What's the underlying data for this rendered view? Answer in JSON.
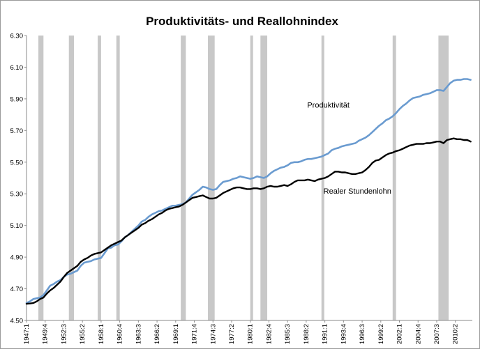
{
  "chart_data": {
    "type": "line",
    "title": "Produktivitäts- und Reallohnindex",
    "xlabel": "",
    "ylabel": "",
    "ylim": [
      4.5,
      6.3
    ],
    "yticks": [
      "6.30",
      "6.10",
      "5.90",
      "5.70",
      "5.50",
      "5.30",
      "5.10",
      "4.90",
      "4.70",
      "4.50"
    ],
    "xlim": [
      1947.0,
      2012.75
    ],
    "xticks": [
      {
        "label": "1947:1",
        "x": 1947.0
      },
      {
        "label": "1949:4",
        "x": 1949.75
      },
      {
        "label": "1952:3",
        "x": 1952.5
      },
      {
        "label": "1955:2",
        "x": 1955.25
      },
      {
        "label": "1958:1",
        "x": 1958.0
      },
      {
        "label": "1960:4",
        "x": 1960.75
      },
      {
        "label": "1963:3",
        "x": 1963.5
      },
      {
        "label": "1966:2",
        "x": 1966.25
      },
      {
        "label": "1969:1",
        "x": 1969.0
      },
      {
        "label": "1971:4",
        "x": 1971.75
      },
      {
        "label": "1974:3",
        "x": 1974.5
      },
      {
        "label": "1977:2",
        "x": 1977.25
      },
      {
        "label": "1980:1",
        "x": 1980.0
      },
      {
        "label": "1982:4",
        "x": 1982.75
      },
      {
        "label": "1985:3",
        "x": 1985.5
      },
      {
        "label": "1988:2",
        "x": 1988.25
      },
      {
        "label": "1991:1",
        "x": 1991.0
      },
      {
        "label": "1993:4",
        "x": 1993.75
      },
      {
        "label": "1996:3",
        "x": 1996.5
      },
      {
        "label": "1999:2",
        "x": 1999.25
      },
      {
        "label": "2002:1",
        "x": 2002.0
      },
      {
        "label": "2004:4",
        "x": 2004.75
      },
      {
        "label": "2007:3",
        "x": 2007.5
      },
      {
        "label": "2010:2",
        "x": 2010.25
      }
    ],
    "recessions": [
      [
        1948.75,
        1949.5
      ],
      [
        1953.25,
        1954.0
      ],
      [
        1957.5,
        1958.0
      ],
      [
        1960.25,
        1960.75
      ],
      [
        1969.75,
        1970.5
      ],
      [
        1973.75,
        1974.75
      ],
      [
        1980.0,
        1980.25
      ],
      [
        1981.5,
        1982.5
      ],
      [
        1990.5,
        1990.9
      ],
      [
        2001.0,
        2001.5
      ],
      [
        2007.75,
        2009.25
      ]
    ],
    "grid": false,
    "legend": "none",
    "series": [
      {
        "name": "Produktivität",
        "color": "#6a9bd0",
        "label_at": [
          1988.4,
          5.845
        ],
        "points": [
          [
            1947.0,
            4.61
          ],
          [
            1947.5,
            4.62
          ],
          [
            1948.0,
            4.635
          ],
          [
            1948.5,
            4.64
          ],
          [
            1949.0,
            4.645
          ],
          [
            1949.5,
            4.66
          ],
          [
            1950.0,
            4.69
          ],
          [
            1950.5,
            4.72
          ],
          [
            1951.0,
            4.73
          ],
          [
            1951.5,
            4.745
          ],
          [
            1952.0,
            4.755
          ],
          [
            1952.5,
            4.775
          ],
          [
            1953.0,
            4.79
          ],
          [
            1953.5,
            4.795
          ],
          [
            1954.0,
            4.805
          ],
          [
            1954.5,
            4.815
          ],
          [
            1955.0,
            4.845
          ],
          [
            1955.5,
            4.865
          ],
          [
            1956.0,
            4.87
          ],
          [
            1956.5,
            4.875
          ],
          [
            1957.0,
            4.885
          ],
          [
            1957.5,
            4.89
          ],
          [
            1958.0,
            4.895
          ],
          [
            1958.5,
            4.925
          ],
          [
            1959.0,
            4.955
          ],
          [
            1959.5,
            4.96
          ],
          [
            1960.0,
            4.975
          ],
          [
            1960.5,
            4.98
          ],
          [
            1961.0,
            5.0
          ],
          [
            1961.5,
            5.025
          ],
          [
            1962.0,
            5.04
          ],
          [
            1962.5,
            5.06
          ],
          [
            1963.0,
            5.08
          ],
          [
            1963.5,
            5.1
          ],
          [
            1964.0,
            5.125
          ],
          [
            1964.5,
            5.135
          ],
          [
            1965.0,
            5.155
          ],
          [
            1965.5,
            5.17
          ],
          [
            1966.0,
            5.18
          ],
          [
            1966.5,
            5.19
          ],
          [
            1967.0,
            5.195
          ],
          [
            1967.5,
            5.205
          ],
          [
            1968.0,
            5.215
          ],
          [
            1968.5,
            5.225
          ],
          [
            1969.0,
            5.225
          ],
          [
            1969.5,
            5.23
          ],
          [
            1970.0,
            5.235
          ],
          [
            1970.5,
            5.245
          ],
          [
            1971.0,
            5.27
          ],
          [
            1971.5,
            5.295
          ],
          [
            1972.0,
            5.31
          ],
          [
            1972.5,
            5.325
          ],
          [
            1973.0,
            5.345
          ],
          [
            1973.5,
            5.34
          ],
          [
            1974.0,
            5.33
          ],
          [
            1974.5,
            5.325
          ],
          [
            1975.0,
            5.33
          ],
          [
            1975.5,
            5.355
          ],
          [
            1976.0,
            5.375
          ],
          [
            1976.5,
            5.38
          ],
          [
            1977.0,
            5.385
          ],
          [
            1977.5,
            5.395
          ],
          [
            1978.0,
            5.4
          ],
          [
            1978.5,
            5.41
          ],
          [
            1979.0,
            5.405
          ],
          [
            1979.5,
            5.4
          ],
          [
            1980.0,
            5.395
          ],
          [
            1980.5,
            5.4
          ],
          [
            1981.0,
            5.41
          ],
          [
            1981.5,
            5.405
          ],
          [
            1982.0,
            5.4
          ],
          [
            1982.5,
            5.41
          ],
          [
            1983.0,
            5.43
          ],
          [
            1983.5,
            5.445
          ],
          [
            1984.0,
            5.455
          ],
          [
            1984.5,
            5.465
          ],
          [
            1985.0,
            5.47
          ],
          [
            1985.5,
            5.48
          ],
          [
            1986.0,
            5.495
          ],
          [
            1986.5,
            5.5
          ],
          [
            1987.0,
            5.5
          ],
          [
            1987.5,
            5.505
          ],
          [
            1988.0,
            5.515
          ],
          [
            1988.5,
            5.52
          ],
          [
            1989.0,
            5.52
          ],
          [
            1989.5,
            5.525
          ],
          [
            1990.0,
            5.53
          ],
          [
            1990.5,
            5.535
          ],
          [
            1991.0,
            5.545
          ],
          [
            1991.5,
            5.555
          ],
          [
            1992.0,
            5.575
          ],
          [
            1992.5,
            5.585
          ],
          [
            1993.0,
            5.59
          ],
          [
            1993.5,
            5.6
          ],
          [
            1994.0,
            5.605
          ],
          [
            1994.5,
            5.61
          ],
          [
            1995.0,
            5.615
          ],
          [
            1995.5,
            5.62
          ],
          [
            1996.0,
            5.635
          ],
          [
            1996.5,
            5.645
          ],
          [
            1997.0,
            5.655
          ],
          [
            1997.5,
            5.67
          ],
          [
            1998.0,
            5.69
          ],
          [
            1998.5,
            5.71
          ],
          [
            1999.0,
            5.73
          ],
          [
            1999.5,
            5.745
          ],
          [
            2000.0,
            5.765
          ],
          [
            2000.5,
            5.775
          ],
          [
            2001.0,
            5.79
          ],
          [
            2001.5,
            5.81
          ],
          [
            2002.0,
            5.835
          ],
          [
            2002.5,
            5.855
          ],
          [
            2003.0,
            5.87
          ],
          [
            2003.5,
            5.89
          ],
          [
            2004.0,
            5.905
          ],
          [
            2004.5,
            5.91
          ],
          [
            2005.0,
            5.915
          ],
          [
            2005.5,
            5.925
          ],
          [
            2006.0,
            5.93
          ],
          [
            2006.5,
            5.935
          ],
          [
            2007.0,
            5.945
          ],
          [
            2007.5,
            5.955
          ],
          [
            2008.0,
            5.955
          ],
          [
            2008.5,
            5.95
          ],
          [
            2009.0,
            5.975
          ],
          [
            2009.5,
            6.0
          ],
          [
            2010.0,
            6.015
          ],
          [
            2010.5,
            6.02
          ],
          [
            2011.0,
            6.02
          ],
          [
            2011.5,
            6.025
          ],
          [
            2012.0,
            6.025
          ],
          [
            2012.5,
            6.02
          ]
        ]
      },
      {
        "name": "Realer Stundenlohn",
        "color": "#000000",
        "label_at": [
          1990.8,
          5.3
        ],
        "points": [
          [
            1947.0,
            4.605
          ],
          [
            1947.5,
            4.607
          ],
          [
            1948.0,
            4.61
          ],
          [
            1948.5,
            4.62
          ],
          [
            1949.0,
            4.635
          ],
          [
            1949.5,
            4.645
          ],
          [
            1950.0,
            4.67
          ],
          [
            1950.5,
            4.69
          ],
          [
            1951.0,
            4.705
          ],
          [
            1951.5,
            4.725
          ],
          [
            1952.0,
            4.745
          ],
          [
            1952.5,
            4.775
          ],
          [
            1953.0,
            4.8
          ],
          [
            1953.5,
            4.815
          ],
          [
            1954.0,
            4.83
          ],
          [
            1954.5,
            4.845
          ],
          [
            1955.0,
            4.87
          ],
          [
            1955.5,
            4.885
          ],
          [
            1956.0,
            4.895
          ],
          [
            1956.5,
            4.91
          ],
          [
            1957.0,
            4.92
          ],
          [
            1957.5,
            4.925
          ],
          [
            1958.0,
            4.93
          ],
          [
            1958.5,
            4.945
          ],
          [
            1959.0,
            4.96
          ],
          [
            1959.5,
            4.975
          ],
          [
            1960.0,
            4.985
          ],
          [
            1960.5,
            4.995
          ],
          [
            1961.0,
            5.005
          ],
          [
            1961.5,
            5.025
          ],
          [
            1962.0,
            5.04
          ],
          [
            1962.5,
            5.055
          ],
          [
            1963.0,
            5.07
          ],
          [
            1963.5,
            5.085
          ],
          [
            1964.0,
            5.105
          ],
          [
            1964.5,
            5.115
          ],
          [
            1965.0,
            5.13
          ],
          [
            1965.5,
            5.14
          ],
          [
            1966.0,
            5.155
          ],
          [
            1966.5,
            5.17
          ],
          [
            1967.0,
            5.18
          ],
          [
            1967.5,
            5.195
          ],
          [
            1968.0,
            5.205
          ],
          [
            1968.5,
            5.21
          ],
          [
            1969.0,
            5.215
          ],
          [
            1969.5,
            5.22
          ],
          [
            1970.0,
            5.23
          ],
          [
            1970.5,
            5.245
          ],
          [
            1971.0,
            5.26
          ],
          [
            1971.5,
            5.275
          ],
          [
            1972.0,
            5.28
          ],
          [
            1972.5,
            5.285
          ],
          [
            1973.0,
            5.29
          ],
          [
            1973.5,
            5.28
          ],
          [
            1974.0,
            5.27
          ],
          [
            1974.5,
            5.27
          ],
          [
            1975.0,
            5.275
          ],
          [
            1975.5,
            5.29
          ],
          [
            1976.0,
            5.305
          ],
          [
            1976.5,
            5.315
          ],
          [
            1977.0,
            5.325
          ],
          [
            1977.5,
            5.335
          ],
          [
            1978.0,
            5.34
          ],
          [
            1978.5,
            5.34
          ],
          [
            1979.0,
            5.335
          ],
          [
            1979.5,
            5.33
          ],
          [
            1980.0,
            5.33
          ],
          [
            1980.5,
            5.335
          ],
          [
            1981.0,
            5.335
          ],
          [
            1981.5,
            5.33
          ],
          [
            1982.0,
            5.335
          ],
          [
            1982.5,
            5.345
          ],
          [
            1983.0,
            5.35
          ],
          [
            1983.5,
            5.345
          ],
          [
            1984.0,
            5.345
          ],
          [
            1984.5,
            5.35
          ],
          [
            1985.0,
            5.355
          ],
          [
            1985.5,
            5.35
          ],
          [
            1986.0,
            5.36
          ],
          [
            1986.5,
            5.375
          ],
          [
            1987.0,
            5.385
          ],
          [
            1987.5,
            5.385
          ],
          [
            1988.0,
            5.385
          ],
          [
            1988.5,
            5.39
          ],
          [
            1989.0,
            5.385
          ],
          [
            1989.5,
            5.38
          ],
          [
            1990.0,
            5.39
          ],
          [
            1990.5,
            5.395
          ],
          [
            1991.0,
            5.4
          ],
          [
            1991.5,
            5.41
          ],
          [
            1992.0,
            5.425
          ],
          [
            1992.5,
            5.44
          ],
          [
            1993.0,
            5.44
          ],
          [
            1993.5,
            5.435
          ],
          [
            1994.0,
            5.435
          ],
          [
            1994.5,
            5.43
          ],
          [
            1995.0,
            5.425
          ],
          [
            1995.5,
            5.425
          ],
          [
            1996.0,
            5.43
          ],
          [
            1996.5,
            5.435
          ],
          [
            1997.0,
            5.45
          ],
          [
            1997.5,
            5.47
          ],
          [
            1998.0,
            5.495
          ],
          [
            1998.5,
            5.51
          ],
          [
            1999.0,
            5.515
          ],
          [
            1999.5,
            5.53
          ],
          [
            2000.0,
            5.545
          ],
          [
            2000.5,
            5.555
          ],
          [
            2001.0,
            5.56
          ],
          [
            2001.5,
            5.57
          ],
          [
            2002.0,
            5.575
          ],
          [
            2002.5,
            5.585
          ],
          [
            2003.0,
            5.595
          ],
          [
            2003.5,
            5.605
          ],
          [
            2004.0,
            5.61
          ],
          [
            2004.5,
            5.615
          ],
          [
            2005.0,
            5.615
          ],
          [
            2005.5,
            5.615
          ],
          [
            2006.0,
            5.62
          ],
          [
            2006.5,
            5.62
          ],
          [
            2007.0,
            5.625
          ],
          [
            2007.5,
            5.63
          ],
          [
            2008.0,
            5.63
          ],
          [
            2008.5,
            5.62
          ],
          [
            2009.0,
            5.64
          ],
          [
            2009.5,
            5.645
          ],
          [
            2010.0,
            5.65
          ],
          [
            2010.5,
            5.645
          ],
          [
            2011.0,
            5.645
          ],
          [
            2011.5,
            5.64
          ],
          [
            2012.0,
            5.64
          ],
          [
            2012.5,
            5.63
          ]
        ]
      }
    ]
  }
}
